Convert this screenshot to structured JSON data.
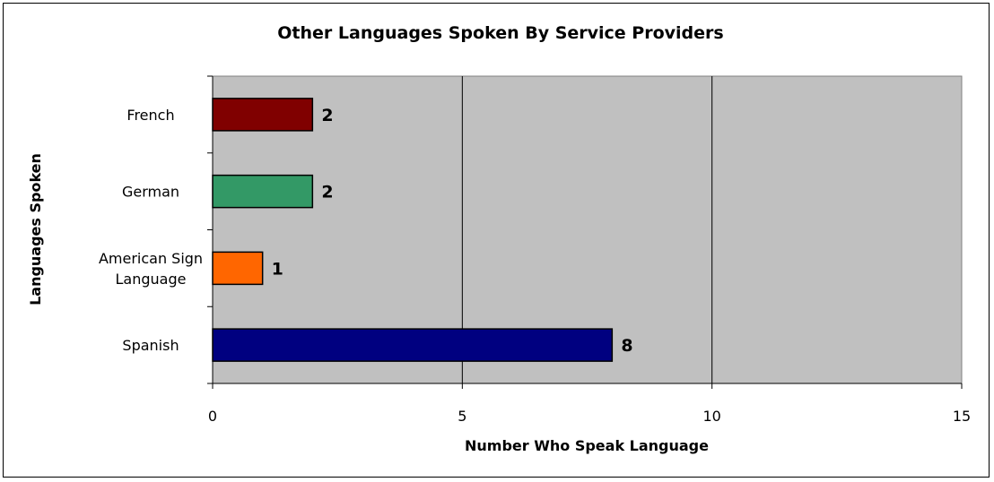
{
  "chart_data": {
    "type": "bar",
    "orientation": "horizontal",
    "title": "Other Languages Spoken By Service Providers",
    "xlabel": "Number Who Speak Language",
    "ylabel": "Languages Spoken",
    "categories": [
      "French",
      "German",
      "American Sign Language",
      "Spanish"
    ],
    "category_lines": [
      [
        "French"
      ],
      [
        "German"
      ],
      [
        "American Sign",
        "Language"
      ],
      [
        "Spanish"
      ]
    ],
    "values": [
      2,
      2,
      1,
      8
    ],
    "bar_colors": [
      "#800000",
      "#339966",
      "#ff6600",
      "#000080"
    ],
    "data_labels": [
      "2",
      "2",
      "1",
      "8"
    ],
    "xlim": [
      0,
      15
    ],
    "xticks": [
      0,
      5,
      10,
      15
    ],
    "xtick_labels": [
      "0",
      "5",
      "10",
      "15"
    ],
    "grid": true,
    "legend": "none",
    "plot_background": "#c0c0c0"
  }
}
